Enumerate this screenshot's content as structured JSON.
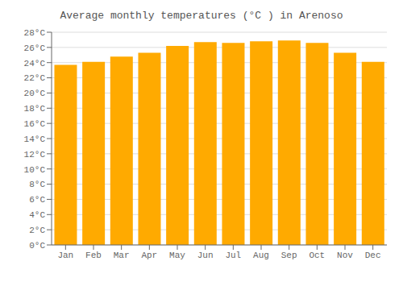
{
  "chart_data": {
    "type": "bar",
    "title": "Average monthly temperatures (°C ) in Arenoso",
    "categories": [
      "Jan",
      "Feb",
      "Mar",
      "Apr",
      "May",
      "Jun",
      "Jul",
      "Aug",
      "Sep",
      "Oct",
      "Nov",
      "Dec"
    ],
    "values": [
      23.7,
      24.1,
      24.8,
      25.3,
      26.2,
      26.7,
      26.6,
      26.8,
      26.9,
      26.6,
      25.3,
      24.1
    ],
    "color": "#FFAA00",
    "ylim": [
      0,
      28
    ],
    "yticks": [
      {
        "value": 0,
        "label": "0°C"
      },
      {
        "value": 2,
        "label": "2°C"
      },
      {
        "value": 4,
        "label": "4°C"
      },
      {
        "value": 6,
        "label": "6°C"
      },
      {
        "value": 8,
        "label": "8°C"
      },
      {
        "value": 10,
        "label": "10°C"
      },
      {
        "value": 12,
        "label": "12°C"
      },
      {
        "value": 14,
        "label": "14°C"
      },
      {
        "value": 16,
        "label": "16°C"
      },
      {
        "value": 18,
        "label": "18°C"
      },
      {
        "value": 20,
        "label": "20°C"
      },
      {
        "value": 22,
        "label": "22°C"
      },
      {
        "value": 24,
        "label": "24°C"
      },
      {
        "value": 26,
        "label": "26°C"
      },
      {
        "value": 28,
        "label": "28°C"
      }
    ],
    "grid": true
  }
}
